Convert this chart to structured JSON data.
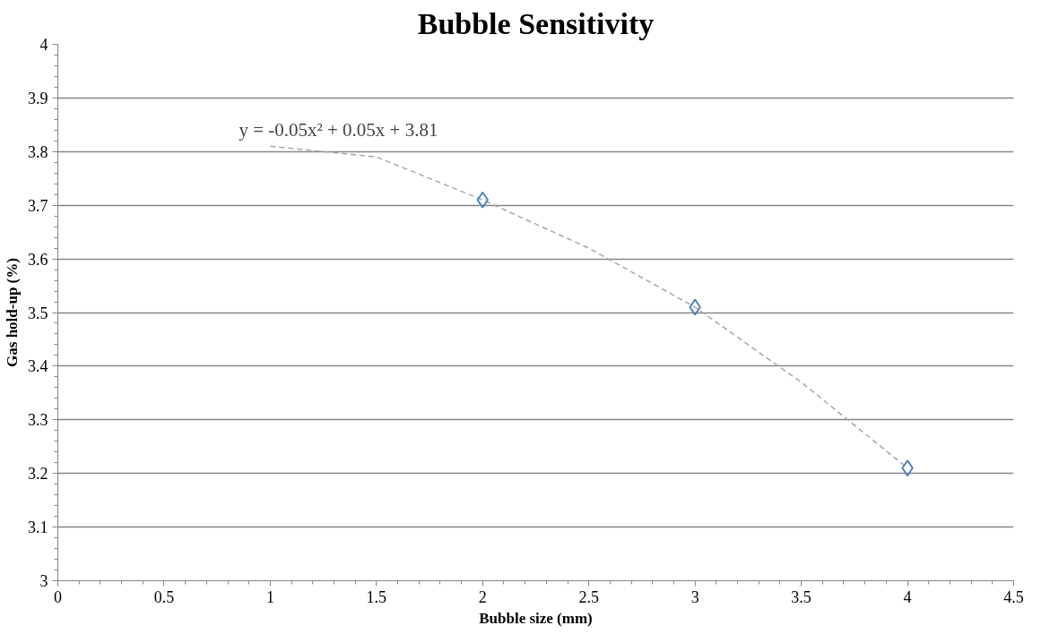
{
  "chart_data": {
    "type": "scatter",
    "title": "Bubble Sensitivity",
    "xlabel": "Bubble size (mm)",
    "ylabel": "Gas hold-up (%)",
    "xlim": [
      0,
      4.5
    ],
    "xticks": [
      0,
      0.5,
      1,
      1.5,
      2,
      2.5,
      3,
      3.5,
      4,
      4.5
    ],
    "ylim": [
      3,
      4
    ],
    "yticks": [
      3,
      3.1,
      3.2,
      3.3,
      3.4,
      3.5,
      3.6,
      3.7,
      3.8,
      3.9,
      4
    ],
    "grid": "y",
    "series": [
      {
        "type": "line",
        "color": "#a6a6a6",
        "line_style": "dashed",
        "x": [
          1,
          1.5,
          2,
          2.5,
          3,
          3.5,
          4
        ],
        "values": [
          3.81,
          3.79,
          3.71,
          3.62,
          3.51,
          3.37,
          3.21
        ]
      },
      {
        "color": "#4f81bd",
        "marker": "diamond",
        "x": [
          2,
          3,
          4
        ],
        "values": [
          3.71,
          3.51,
          3.21
        ]
      }
    ],
    "annotations": [
      {
        "text": "y = -0.05x² + 0.05x + 3.81",
        "x": 1,
        "y": 3.81
      }
    ]
  }
}
